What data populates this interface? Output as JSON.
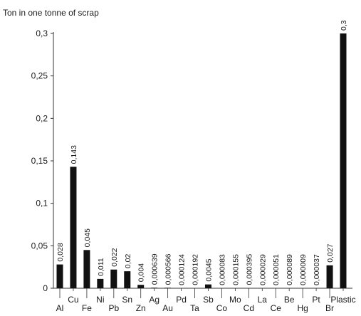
{
  "chart_data": {
    "type": "bar",
    "title": "Ton in one tonne of scrap",
    "xlabel": "",
    "ylabel": "",
    "ylim": [
      0,
      0.3
    ],
    "yticks": [
      0,
      0.05,
      0.1,
      0.15,
      0.2,
      0.25,
      0.3
    ],
    "ytick_labels": [
      "0",
      "0,05",
      "0,1",
      "0,15",
      "0,2",
      "0,25",
      "0,3"
    ],
    "grid": false,
    "legend": "none",
    "bar_color": "#111111",
    "categories": [
      "Al",
      "Cu",
      "Fe",
      "Ni",
      "Pb",
      "Sn",
      "Zn",
      "Ag",
      "Au",
      "Pd",
      "Ta",
      "Sb",
      "Co",
      "Mo",
      "Cd",
      "La",
      "Ce",
      "Be",
      "Hg",
      "Pt",
      "Br",
      "Plastic"
    ],
    "values": [
      0.028,
      0.143,
      0.045,
      0.011,
      0.022,
      0.02,
      0.004,
      0.000639,
      0.000566,
      0.000124,
      0.000192,
      0.0045,
      8.3e-05,
      0.000155,
      0.000395,
      2.9e-05,
      5.1e-05,
      8.9e-05,
      9e-06,
      3.7e-05,
      0.027,
      0.3
    ],
    "value_labels": [
      "0,028",
      "0,143",
      "0,045",
      "0,011",
      "0,022",
      "0,02",
      "0,004",
      "0,000639",
      "0,000566",
      "0,000124",
      "0,000192",
      "0,0045",
      "0,000083",
      "0,000155",
      "0,000395",
      "0,000029",
      "0,000051",
      "0,000089",
      "0,000009",
      "0,000037",
      "0,027",
      "0,3"
    ]
  }
}
